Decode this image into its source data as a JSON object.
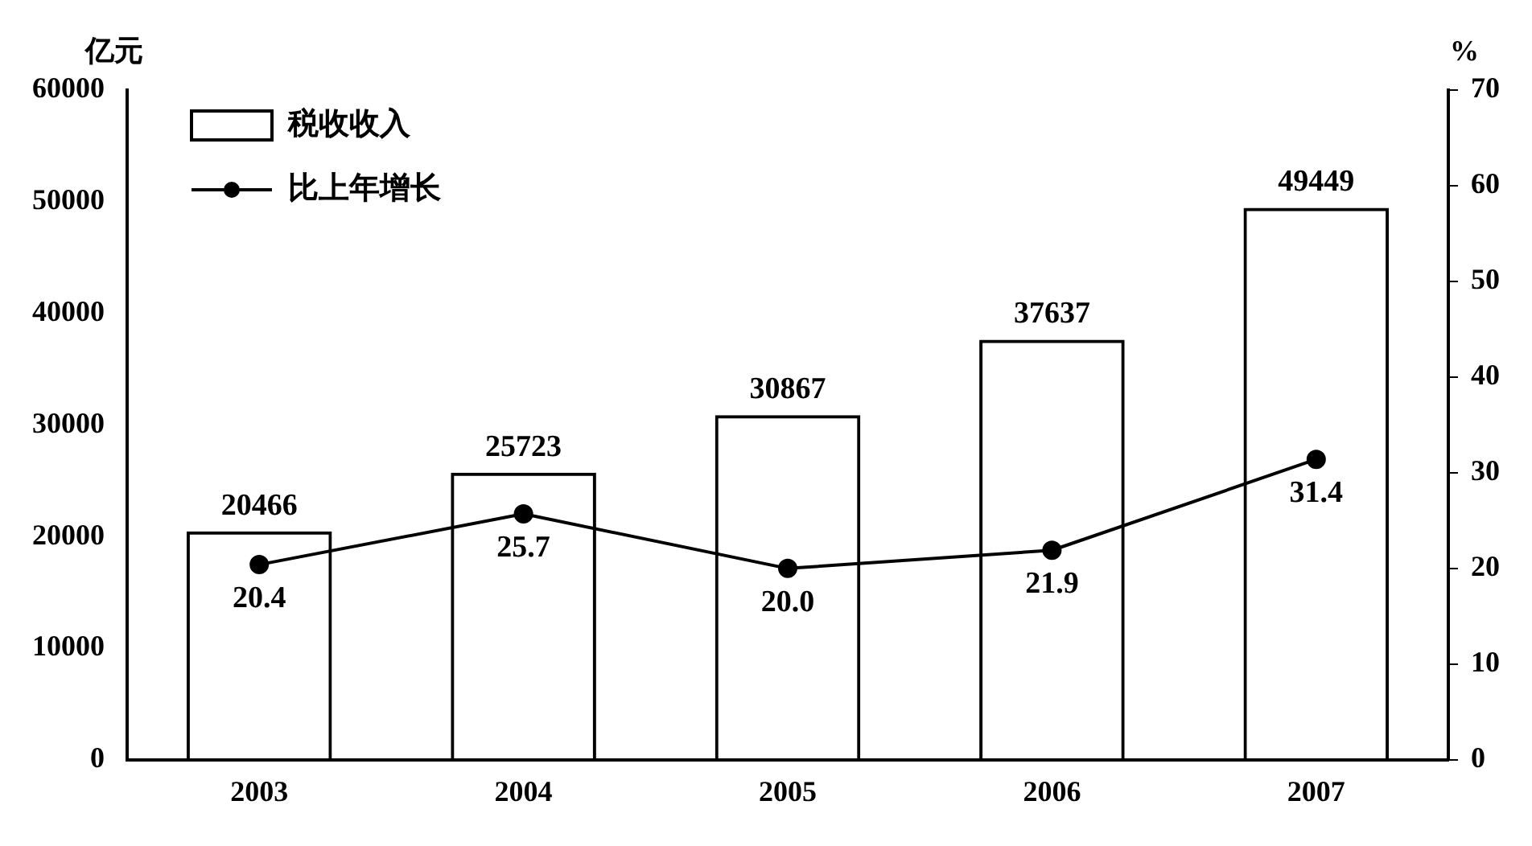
{
  "chart_data": {
    "type": "bar",
    "categories": [
      "2003",
      "2004",
      "2005",
      "2006",
      "2007"
    ],
    "ylabel": "亿元",
    "y2label": "%",
    "series": [
      {
        "name": "税收收入",
        "color": "#000000",
        "values": [
          20466,
          25723,
          30867,
          37637,
          49449
        ],
        "value_labels": [
          "20466",
          "25723",
          "30867",
          "37637",
          "49449"
        ]
      },
      {
        "name": "比上年增长",
        "type": "line",
        "axis": "y2",
        "color": "#000000",
        "values": [
          20.4,
          25.7,
          20.0,
          21.9,
          31.4
        ],
        "value_labels": [
          "20.4",
          "25.7",
          "20.0",
          "21.9",
          "31.4"
        ]
      }
    ],
    "ylim": [
      0,
      60000
    ],
    "yticks": [
      0,
      10000,
      20000,
      30000,
      40000,
      50000,
      60000
    ],
    "y2lim": [
      0,
      70
    ],
    "y2ticks": [
      0,
      10,
      20,
      30,
      40,
      50,
      60,
      70
    ],
    "grid": false,
    "legend": "top left",
    "marker": "circle",
    "line_style": "solid"
  }
}
